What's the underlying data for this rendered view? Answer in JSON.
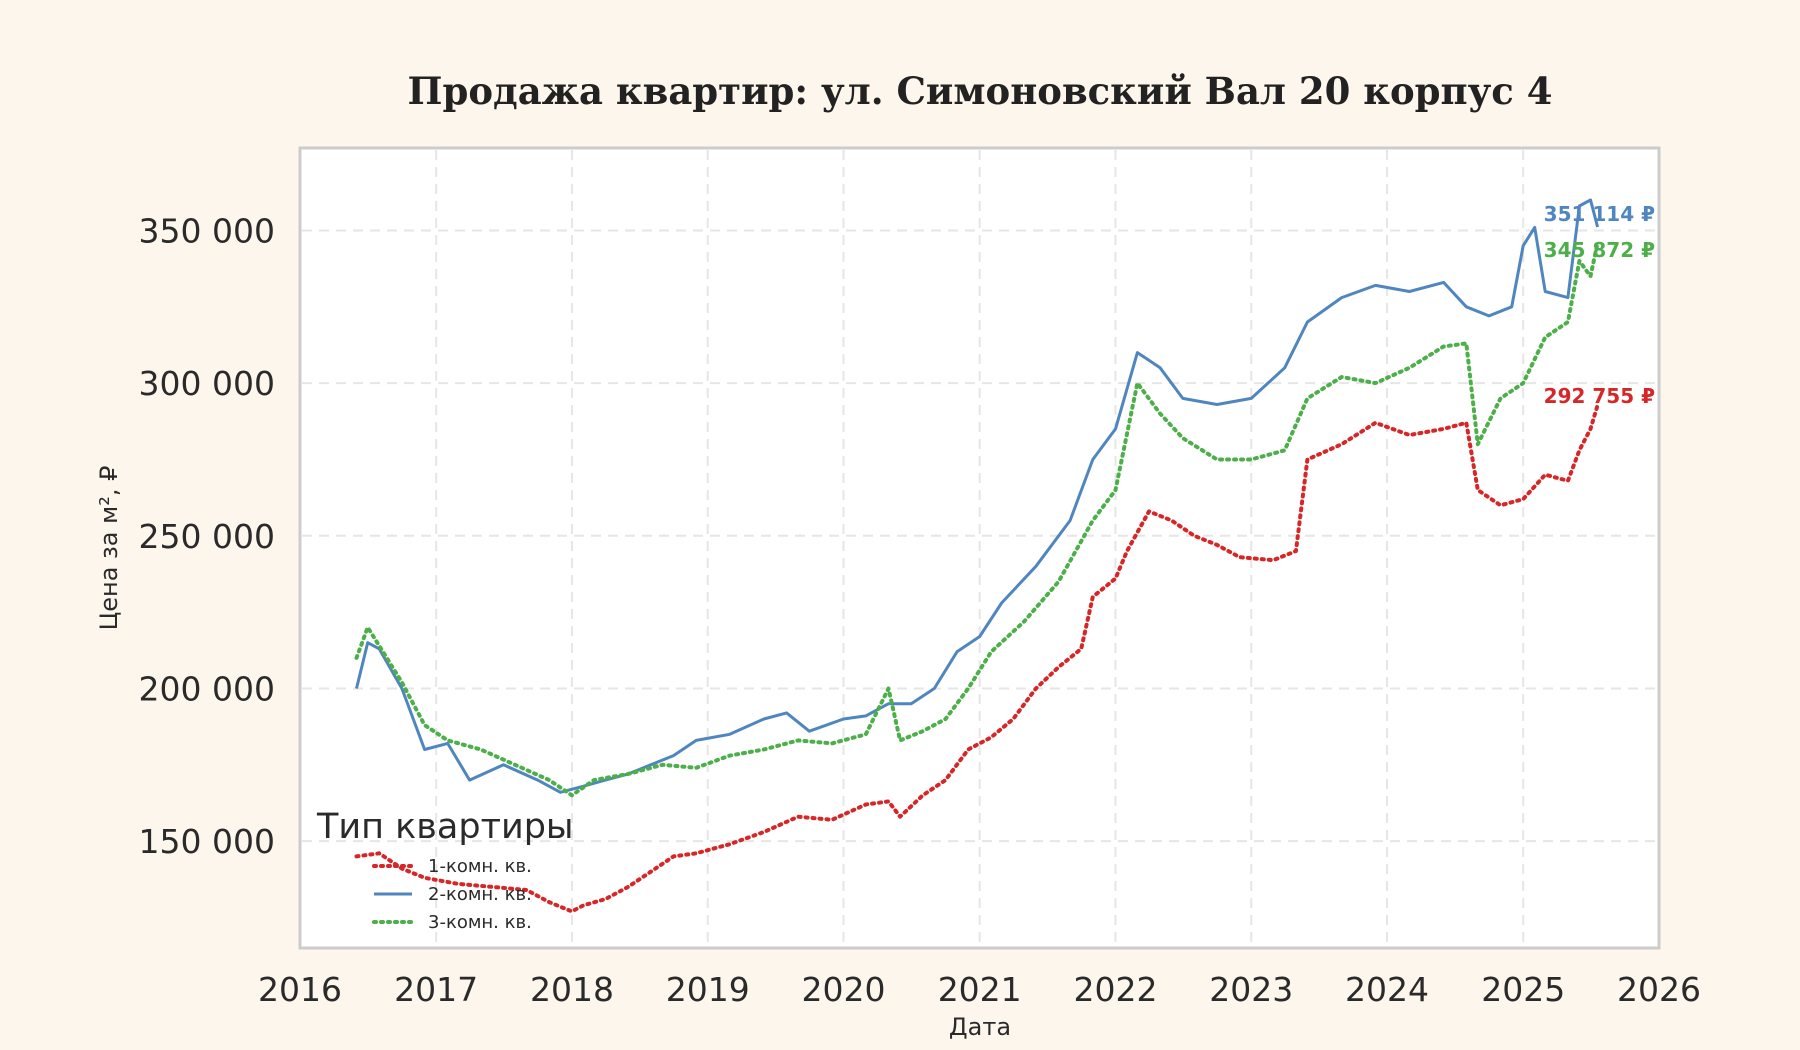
{
  "chart_data": {
    "type": "line",
    "title": "Продажа квартир: ул. Симоновский Вал 20 корпус 4",
    "xlabel": "Дата",
    "ylabel": "Цена за м², ₽",
    "xlim": [
      "2016-01-01",
      "2026-01-01"
    ],
    "ylim": [
      115000,
      377000
    ],
    "x_ticks": [
      "2016",
      "2017",
      "2018",
      "2019",
      "2020",
      "2021",
      "2022",
      "2023",
      "2024",
      "2025",
      "2026"
    ],
    "y_ticks": [
      150000,
      200000,
      250000,
      300000,
      350000
    ],
    "y_tick_labels": [
      "150 000",
      "200 000",
      "250 000",
      "300 000",
      "350 000"
    ],
    "grid": true,
    "legend": {
      "title": "Тип квартиры",
      "placement": "bottom-left"
    },
    "series": [
      {
        "name": "1-комн. кв.",
        "color": "#d62728",
        "style": "dotted",
        "end_label": "292 755 ₽",
        "points": [
          [
            "2016-06-01",
            145000
          ],
          [
            "2016-08-01",
            146000
          ],
          [
            "2016-10-01",
            141000
          ],
          [
            "2016-12-01",
            138000
          ],
          [
            "2017-03-01",
            136000
          ],
          [
            "2017-06-01",
            135000
          ],
          [
            "2017-09-01",
            134000
          ],
          [
            "2017-11-01",
            130000
          ],
          [
            "2018-01-01",
            127000
          ],
          [
            "2018-02-01",
            129000
          ],
          [
            "2018-04-01",
            131000
          ],
          [
            "2018-06-01",
            135000
          ],
          [
            "2018-08-01",
            140000
          ],
          [
            "2018-10-01",
            145000
          ],
          [
            "2018-12-01",
            146000
          ],
          [
            "2019-03-01",
            149000
          ],
          [
            "2019-06-01",
            153000
          ],
          [
            "2019-09-01",
            158000
          ],
          [
            "2019-12-01",
            157000
          ],
          [
            "2020-03-01",
            162000
          ],
          [
            "2020-05-01",
            163000
          ],
          [
            "2020-06-01",
            158000
          ],
          [
            "2020-08-01",
            165000
          ],
          [
            "2020-10-01",
            170000
          ],
          [
            "2020-12-01",
            180000
          ],
          [
            "2021-02-01",
            184000
          ],
          [
            "2021-04-01",
            190000
          ],
          [
            "2021-06-01",
            200000
          ],
          [
            "2021-08-01",
            207000
          ],
          [
            "2021-10-01",
            213000
          ],
          [
            "2021-11-01",
            230000
          ],
          [
            "2022-01-01",
            236000
          ],
          [
            "2022-02-01",
            245000
          ],
          [
            "2022-04-01",
            258000
          ],
          [
            "2022-06-01",
            255000
          ],
          [
            "2022-08-01",
            250000
          ],
          [
            "2022-10-01",
            247000
          ],
          [
            "2022-12-01",
            243000
          ],
          [
            "2023-03-01",
            242000
          ],
          [
            "2023-05-01",
            245000
          ],
          [
            "2023-06-01",
            275000
          ],
          [
            "2023-09-01",
            280000
          ],
          [
            "2023-12-01",
            287000
          ],
          [
            "2024-03-01",
            283000
          ],
          [
            "2024-06-01",
            285000
          ],
          [
            "2024-08-01",
            287000
          ],
          [
            "2024-09-01",
            265000
          ],
          [
            "2024-11-01",
            260000
          ],
          [
            "2025-01-01",
            262000
          ],
          [
            "2025-03-01",
            270000
          ],
          [
            "2025-05-01",
            268000
          ],
          [
            "2025-06-01",
            278000
          ],
          [
            "2025-07-01",
            285000
          ],
          [
            "2025-07-20",
            292755
          ]
        ]
      },
      {
        "name": "2-комн. кв.",
        "color": "#4f86bf",
        "style": "solid",
        "end_label": "351 114 ₽",
        "points": [
          [
            "2016-06-01",
            200000
          ],
          [
            "2016-07-01",
            215000
          ],
          [
            "2016-08-01",
            213000
          ],
          [
            "2016-10-01",
            200000
          ],
          [
            "2016-12-01",
            180000
          ],
          [
            "2017-02-01",
            182000
          ],
          [
            "2017-04-01",
            170000
          ],
          [
            "2017-07-01",
            175000
          ],
          [
            "2017-10-01",
            170000
          ],
          [
            "2017-12-01",
            166000
          ],
          [
            "2018-02-01",
            168000
          ],
          [
            "2018-04-01",
            170000
          ],
          [
            "2018-06-01",
            172000
          ],
          [
            "2018-08-01",
            175000
          ],
          [
            "2018-10-01",
            178000
          ],
          [
            "2018-12-01",
            183000
          ],
          [
            "2019-03-01",
            185000
          ],
          [
            "2019-06-01",
            190000
          ],
          [
            "2019-08-01",
            192000
          ],
          [
            "2019-10-01",
            186000
          ],
          [
            "2020-01-01",
            190000
          ],
          [
            "2020-03-01",
            191000
          ],
          [
            "2020-05-01",
            195000
          ],
          [
            "2020-07-01",
            195000
          ],
          [
            "2020-09-01",
            200000
          ],
          [
            "2020-11-01",
            212000
          ],
          [
            "2021-01-01",
            217000
          ],
          [
            "2021-03-01",
            228000
          ],
          [
            "2021-06-01",
            240000
          ],
          [
            "2021-09-01",
            255000
          ],
          [
            "2021-11-01",
            275000
          ],
          [
            "2022-01-01",
            285000
          ],
          [
            "2022-03-01",
            310000
          ],
          [
            "2022-05-01",
            305000
          ],
          [
            "2022-07-01",
            295000
          ],
          [
            "2022-10-01",
            293000
          ],
          [
            "2023-01-01",
            295000
          ],
          [
            "2023-04-01",
            305000
          ],
          [
            "2023-06-01",
            320000
          ],
          [
            "2023-09-01",
            328000
          ],
          [
            "2023-12-01",
            332000
          ],
          [
            "2024-03-01",
            330000
          ],
          [
            "2024-06-01",
            333000
          ],
          [
            "2024-08-01",
            325000
          ],
          [
            "2024-10-01",
            322000
          ],
          [
            "2024-12-01",
            325000
          ],
          [
            "2025-01-01",
            345000
          ],
          [
            "2025-02-01",
            351000
          ],
          [
            "2025-03-01",
            330000
          ],
          [
            "2025-05-01",
            328000
          ],
          [
            "2025-06-01",
            358000
          ],
          [
            "2025-07-01",
            360000
          ],
          [
            "2025-07-20",
            351114
          ]
        ]
      },
      {
        "name": "3-комн. кв.",
        "color": "#4daf4a",
        "style": "dotted",
        "end_label": "345 872 ₽",
        "points": [
          [
            "2016-06-01",
            210000
          ],
          [
            "2016-07-01",
            220000
          ],
          [
            "2016-08-01",
            214000
          ],
          [
            "2016-10-01",
            202000
          ],
          [
            "2016-12-01",
            188000
          ],
          [
            "2017-02-01",
            183000
          ],
          [
            "2017-05-01",
            180000
          ],
          [
            "2017-08-01",
            175000
          ],
          [
            "2017-11-01",
            170000
          ],
          [
            "2018-01-01",
            165000
          ],
          [
            "2018-03-01",
            170000
          ],
          [
            "2018-06-01",
            172000
          ],
          [
            "2018-09-01",
            175000
          ],
          [
            "2018-12-01",
            174000
          ],
          [
            "2019-03-01",
            178000
          ],
          [
            "2019-06-01",
            180000
          ],
          [
            "2019-09-01",
            183000
          ],
          [
            "2019-12-01",
            182000
          ],
          [
            "2020-03-01",
            185000
          ],
          [
            "2020-05-01",
            200000
          ],
          [
            "2020-06-01",
            183000
          ],
          [
            "2020-08-01",
            186000
          ],
          [
            "2020-10-01",
            190000
          ],
          [
            "2020-12-01",
            200000
          ],
          [
            "2021-02-01",
            212000
          ],
          [
            "2021-05-01",
            222000
          ],
          [
            "2021-08-01",
            235000
          ],
          [
            "2021-11-01",
            255000
          ],
          [
            "2022-01-01",
            265000
          ],
          [
            "2022-03-01",
            300000
          ],
          [
            "2022-05-01",
            290000
          ],
          [
            "2022-07-01",
            282000
          ],
          [
            "2022-10-01",
            275000
          ],
          [
            "2023-01-01",
            275000
          ],
          [
            "2023-04-01",
            278000
          ],
          [
            "2023-06-01",
            295000
          ],
          [
            "2023-09-01",
            302000
          ],
          [
            "2023-12-01",
            300000
          ],
          [
            "2024-03-01",
            305000
          ],
          [
            "2024-06-01",
            312000
          ],
          [
            "2024-08-01",
            313000
          ],
          [
            "2024-09-01",
            280000
          ],
          [
            "2024-11-01",
            295000
          ],
          [
            "2025-01-01",
            300000
          ],
          [
            "2025-03-01",
            315000
          ],
          [
            "2025-05-01",
            320000
          ],
          [
            "2025-06-01",
            340000
          ],
          [
            "2025-07-01",
            335000
          ],
          [
            "2025-07-20",
            345872
          ]
        ]
      }
    ]
  }
}
